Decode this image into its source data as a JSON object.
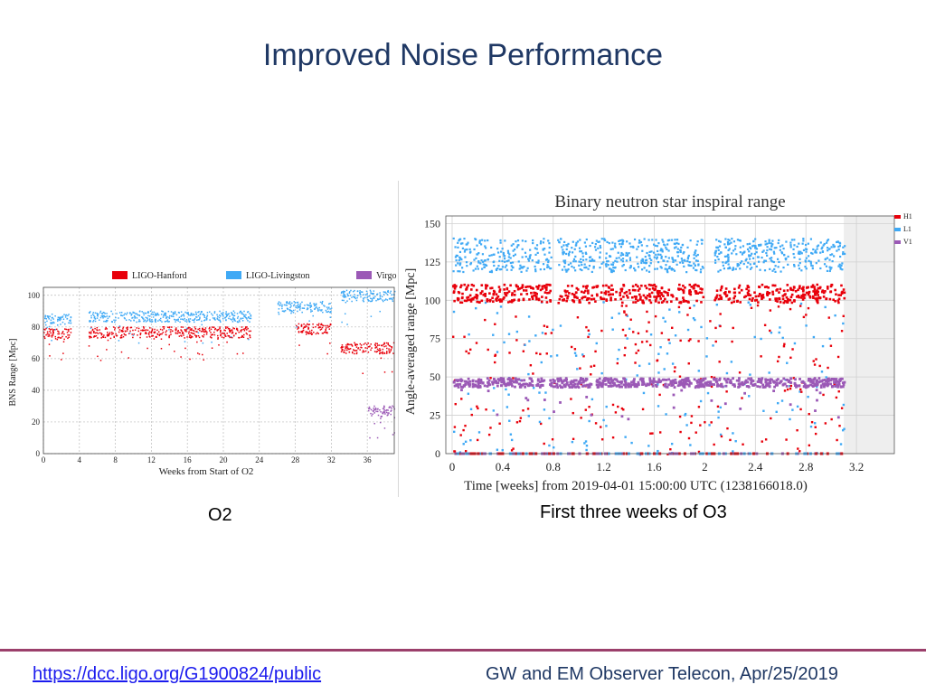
{
  "slide": {
    "title": "Improved Noise Performance",
    "caption_left": "O2",
    "caption_right": "First three weeks of O3",
    "footer_link": "https://dcc.ligo.org/G1900824/public",
    "footer_right": "GW and EM Observer Telecon, Apr/25/2019"
  },
  "chart_data": [
    {
      "type": "scatter",
      "title": "",
      "xlabel": "Weeks from Start of O2",
      "ylabel": "BNS Range [Mpc]",
      "xlim": [
        0,
        39
      ],
      "ylim": [
        0,
        105
      ],
      "xticks": [
        "0",
        "4",
        "8",
        "12",
        "16",
        "20",
        "24",
        "28",
        "32",
        "36"
      ],
      "yticks": [
        "0",
        "20",
        "40",
        "60",
        "80",
        "100"
      ],
      "legend_position": "top",
      "grid": true,
      "series": [
        {
          "name": "LIGO-Hanford",
          "color": "#e8000b",
          "segments": [
            [
              0,
              3,
              76
            ],
            [
              5,
              23,
              77
            ],
            [
              28,
              32,
              79
            ],
            [
              33,
              39,
              67
            ]
          ]
        },
        {
          "name": "LIGO-Livingston",
          "color": "#3fa9f5",
          "segments": [
            [
              0,
              3,
              85
            ],
            [
              5,
              23,
              87
            ],
            [
              26,
              32,
              93
            ],
            [
              33,
              39,
              100
            ]
          ]
        },
        {
          "name": "Virgo",
          "color": "#9b59b6",
          "segments": [
            [
              36,
              39,
              27
            ]
          ]
        }
      ]
    },
    {
      "type": "scatter",
      "title": "Binary neutron star inspiral range",
      "xlabel": "Time [weeks] from 2019-04-01 15:00:00 UTC (1238166018.0)",
      "ylabel": "Angle-averaged range [Mpc]",
      "xlim": [
        -0.05,
        3.5
      ],
      "ylim": [
        0,
        155
      ],
      "xticks": [
        "0",
        "0.4",
        "0.8",
        "1.2",
        "1.6",
        "2",
        "2.4",
        "2.8",
        "3.2"
      ],
      "yticks": [
        "0",
        "25",
        "50",
        "75",
        "100",
        "125",
        "150"
      ],
      "legend_position": "right",
      "grid": true,
      "series": [
        {
          "name": "H1",
          "color": "#e8000b",
          "typical_value": 105
        },
        {
          "name": "L1",
          "color": "#3fa9f5",
          "typical_value": 130
        },
        {
          "name": "V1",
          "color": "#9b59b6",
          "typical_value": 47
        }
      ],
      "data_end_week": 3.1
    }
  ]
}
